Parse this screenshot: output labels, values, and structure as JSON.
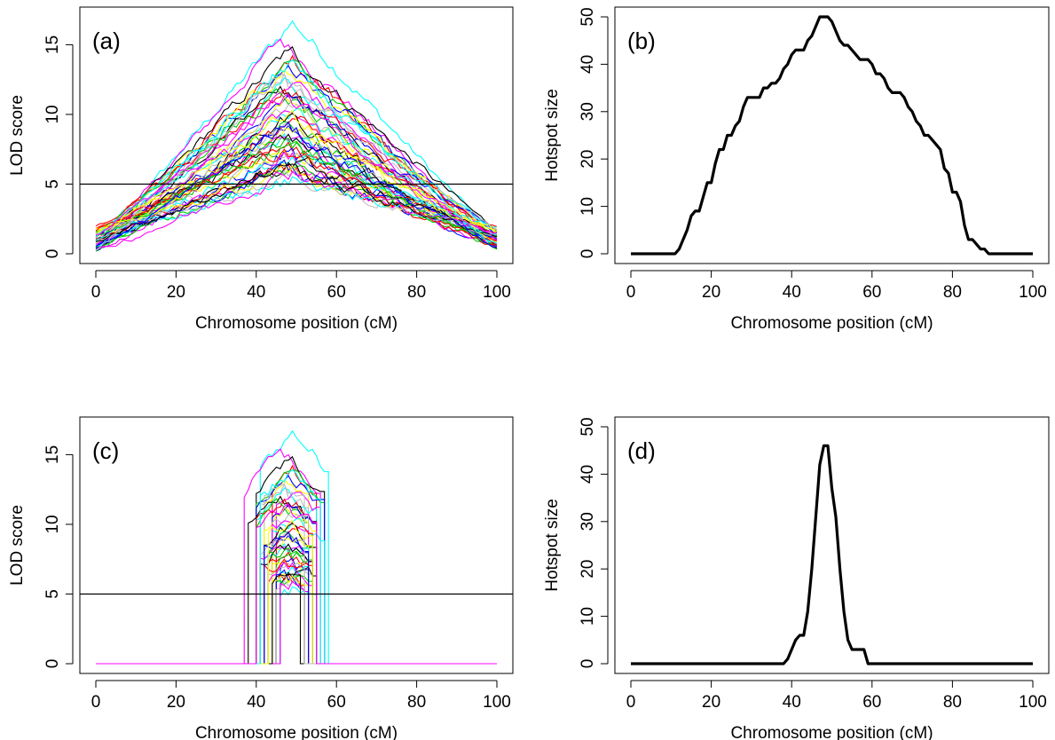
{
  "chart_data": [
    {
      "panel": "a",
      "panel_label": "(a)",
      "type": "line",
      "xlabel": "Chromosome position (cM)",
      "ylabel": "LOD score",
      "xlim": [
        0,
        100
      ],
      "ylim": [
        0,
        17
      ],
      "x_ticks": [
        0,
        20,
        40,
        60,
        80,
        100
      ],
      "y_ticks": [
        0,
        5,
        10,
        15
      ],
      "threshold": 5,
      "peak_position": 48,
      "peak_values": [
        16.7,
        15.4,
        14.6,
        14.2,
        13.8,
        13.5,
        13.2,
        12.9,
        12.6,
        12.3,
        12.0,
        11.8,
        11.5,
        11.2,
        11.0,
        10.7,
        10.4,
        10.2,
        9.9,
        9.7,
        9.4,
        9.2,
        9.0,
        8.8,
        8.6,
        8.4,
        8.2,
        8.0,
        7.8,
        7.6,
        7.4,
        7.2,
        7.0,
        6.8,
        6.6,
        6.4,
        6.2,
        6.0,
        5.8,
        5.6,
        5.4,
        5.9,
        6.3,
        7.5,
        8.3,
        9.1,
        10.0,
        12.8,
        13.7,
        11.3
      ],
      "series_colors": [
        "#00ffff",
        "#ff00ff",
        "#000000",
        "#ff0000",
        "#00cd00",
        "#0000ff",
        "#ffff00",
        "#bebebe"
      ],
      "grid": false
    },
    {
      "panel": "b",
      "panel_label": "(b)",
      "type": "line",
      "xlabel": "Chromosome position (cM)",
      "ylabel": "Hotspot size",
      "xlim": [
        0,
        100
      ],
      "ylim": [
        0,
        50
      ],
      "x_ticks": [
        0,
        20,
        40,
        60,
        80,
        100
      ],
      "y_ticks": [
        0,
        10,
        20,
        30,
        40,
        50
      ],
      "x": [
        0,
        11,
        12,
        13,
        14,
        15,
        16,
        17,
        18,
        19,
        20,
        21,
        22,
        23,
        24,
        25,
        26,
        27,
        28,
        29,
        30,
        31,
        32,
        33,
        34,
        35,
        36,
        37,
        38,
        39,
        40,
        41,
        42,
        43,
        44,
        45,
        46,
        47,
        48,
        49,
        50,
        51,
        52,
        53,
        54,
        55,
        56,
        57,
        58,
        59,
        60,
        61,
        62,
        63,
        64,
        65,
        66,
        67,
        68,
        69,
        70,
        71,
        72,
        73,
        74,
        75,
        76,
        77,
        78,
        79,
        80,
        81,
        82,
        83,
        84,
        85,
        86,
        87,
        88,
        89,
        100
      ],
      "y": [
        0,
        0,
        1,
        3,
        5,
        8,
        9,
        9,
        12,
        15,
        15,
        19,
        22,
        22,
        25,
        25,
        27,
        28,
        31,
        33,
        33,
        33,
        33,
        35,
        35,
        36,
        36,
        37,
        39,
        40,
        42,
        43,
        43,
        43,
        45,
        46,
        48,
        50,
        50,
        50,
        49,
        47,
        45,
        44,
        44,
        43,
        42,
        41,
        41,
        41,
        40,
        38,
        38,
        37,
        35,
        34,
        34,
        34,
        33,
        31,
        30,
        28,
        27,
        25,
        25,
        24,
        23,
        22,
        18,
        17,
        13,
        13,
        11,
        6,
        3,
        3,
        2,
        1,
        1,
        0,
        0
      ],
      "grid": false
    },
    {
      "panel": "c",
      "panel_label": "(c)",
      "type": "line",
      "xlabel": "Chromosome position (cM)",
      "ylabel": "LOD score",
      "xlim": [
        0,
        100
      ],
      "ylim": [
        0,
        17
      ],
      "x_ticks": [
        0,
        20,
        40,
        60,
        80,
        100
      ],
      "y_ticks": [
        0,
        5,
        10,
        15
      ],
      "threshold": 5,
      "grid": false
    },
    {
      "panel": "d",
      "panel_label": "(d)",
      "type": "line",
      "xlabel": "Chromosome position (cM)",
      "ylabel": "Hotspot size",
      "xlim": [
        0,
        100
      ],
      "ylim": [
        0,
        50
      ],
      "x_ticks": [
        0,
        20,
        40,
        60,
        80,
        100
      ],
      "y_ticks": [
        0,
        10,
        20,
        30,
        40,
        50
      ],
      "x": [
        0,
        38,
        39,
        40,
        41,
        42,
        43,
        44,
        45,
        46,
        47,
        48,
        49,
        50,
        51,
        52,
        53,
        54,
        55,
        56,
        57,
        58,
        59,
        100
      ],
      "y": [
        0,
        0,
        1,
        3,
        5,
        6,
        6,
        11,
        20,
        31,
        42,
        46,
        46,
        37,
        31,
        20,
        11,
        5,
        3,
        3,
        3,
        3,
        0,
        0
      ],
      "grid": false
    }
  ]
}
